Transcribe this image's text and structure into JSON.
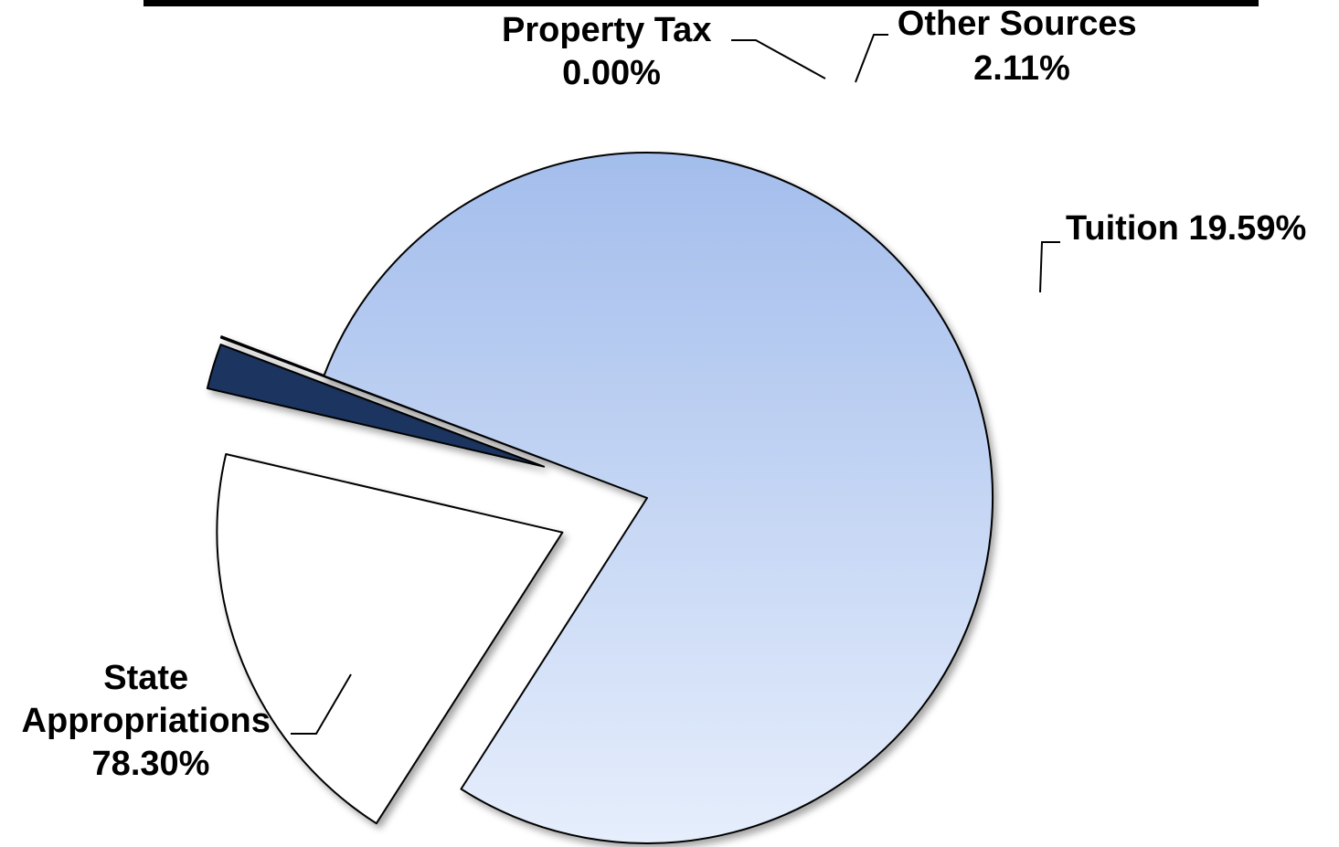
{
  "chart_data": {
    "type": "pie",
    "title": "",
    "slices": [
      {
        "label": "State Appropriations",
        "value": 78.3,
        "value_label": "78.30%",
        "color": "#a3bdec",
        "label_lines": [
          "State",
          "Appropriations",
          "78.30%"
        ]
      },
      {
        "label": "Tuition",
        "value": 19.59,
        "value_label": "19.59%",
        "color": "#ffffff",
        "label_lines": [
          "Tuition 19.59%"
        ]
      },
      {
        "label": "Other Sources",
        "value": 2.11,
        "value_label": "2.11%",
        "color": "#1b3660",
        "label_lines": [
          "Other Sources",
          "2.11%"
        ]
      },
      {
        "label": "Property Tax",
        "value": 0.0,
        "value_label": "0.00%",
        "color": "#c9d8ef",
        "label_lines": [
          "Property Tax",
          "0.00%"
        ]
      }
    ],
    "exploded": [
      "Tuition",
      "Other Sources",
      "Property Tax"
    ],
    "gradient": {
      "top": "#a3bdec",
      "bottom": "#e6eefc"
    },
    "legend": "none"
  }
}
